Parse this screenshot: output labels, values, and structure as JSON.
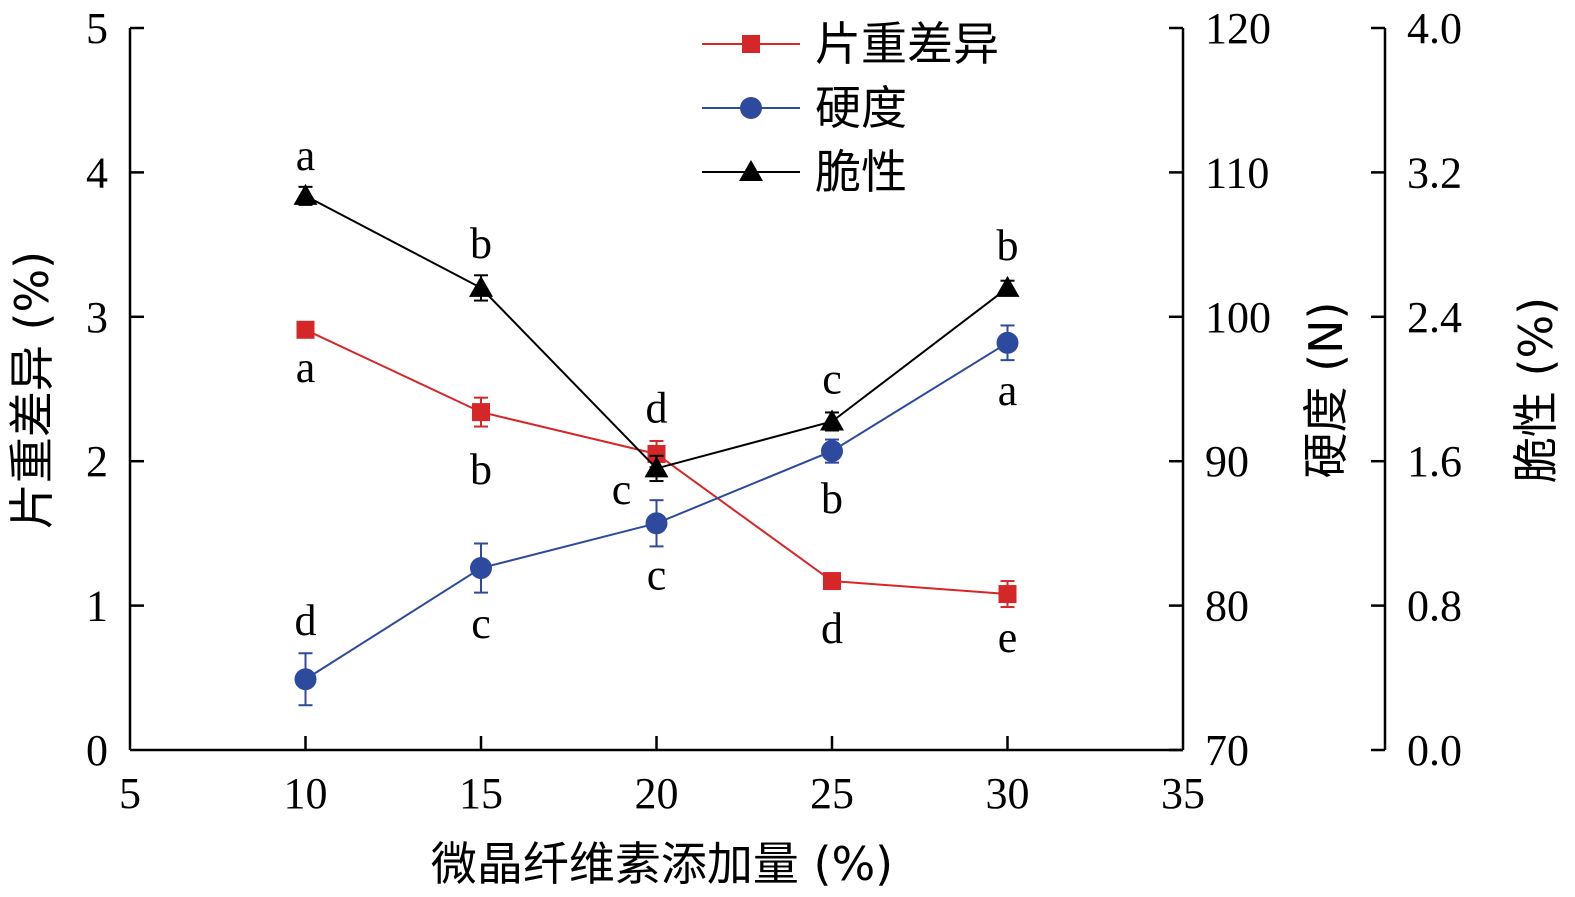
{
  "chart_data": {
    "type": "line",
    "xlabel": "微晶纤维素添加量 (%)",
    "xlim": [
      5,
      35
    ],
    "xticks": [
      "5",
      "10",
      "15",
      "20",
      "25",
      "30",
      "35"
    ],
    "x": [
      10,
      15,
      20,
      25,
      30
    ],
    "grid": false,
    "legend_position": "top-center",
    "axes": {
      "left": {
        "label": "片重差异 (%)",
        "range": [
          0,
          5
        ],
        "ticks": [
          "0",
          "1",
          "2",
          "3",
          "4",
          "5"
        ]
      },
      "right1": {
        "label": "硬度 (N)",
        "range": [
          70,
          120
        ],
        "ticks": [
          "70",
          "80",
          "90",
          "100",
          "110",
          "120"
        ]
      },
      "right2": {
        "label": "脆性 (%)",
        "range": [
          0,
          4
        ],
        "ticks": [
          "0.0",
          "0.8",
          "1.6",
          "2.4",
          "3.2",
          "4.0"
        ]
      }
    },
    "series": [
      {
        "name": "片重差异",
        "axis": "left",
        "color": "#d62728",
        "marker": "square",
        "values": [
          2.91,
          2.34,
          2.05,
          1.17,
          1.08
        ],
        "errors": [
          0.03,
          0.1,
          0.09,
          0.03,
          0.09
        ],
        "letters": [
          "a",
          "b",
          "c",
          "d",
          "e"
        ]
      },
      {
        "name": "硬度",
        "axis": "right1",
        "color": "#2e4a9e",
        "marker": "circle",
        "values": [
          74.9,
          82.6,
          85.7,
          90.7,
          98.2
        ],
        "errors": [
          1.8,
          1.7,
          1.6,
          0.8,
          1.2
        ],
        "letters": [
          "d",
          "c",
          "c",
          "b",
          "a"
        ]
      },
      {
        "name": "脆性",
        "axis": "right2",
        "color": "#000000",
        "marker": "triangle",
        "values": [
          3.07,
          2.56,
          1.56,
          1.82,
          2.56
        ],
        "errors": [
          0.05,
          0.07,
          0.07,
          0.05,
          0.04
        ],
        "letters": [
          "a",
          "b",
          "d",
          "c",
          "b"
        ]
      }
    ]
  }
}
